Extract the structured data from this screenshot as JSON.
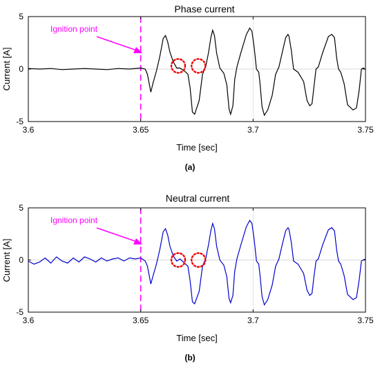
{
  "chart_data": [
    {
      "type": "line",
      "panel_label": "(a)",
      "title": "Phase current",
      "xlabel": "Time [sec]",
      "ylabel": "Current [A]",
      "xlim": [
        3.6,
        3.75
      ],
      "ylim": [
        -5,
        5
      ],
      "xticks": [
        "3.6",
        "3.65",
        "3.7",
        "3.75"
      ],
      "xtick_values": [
        3.6,
        3.65,
        3.7,
        3.75
      ],
      "yticks": [
        "5",
        "0",
        "-5"
      ],
      "ytick_values": [
        5,
        0,
        -5
      ],
      "grid": false,
      "line_color": "#000000",
      "annotation": {
        "text": "Ignition point",
        "x": 3.65,
        "color": "#ff00ff"
      },
      "highlight_circles": [
        {
          "x": 3.6667,
          "y": 0.3
        },
        {
          "x": 3.6757,
          "y": 0.3
        }
      ],
      "series": [
        {
          "x": [
            3.6,
            3.605,
            3.61,
            3.615,
            3.62,
            3.625,
            3.63,
            3.635,
            3.64,
            3.645,
            3.65,
            3.652,
            3.653,
            3.6545,
            3.6555,
            3.657,
            3.6585,
            3.66,
            3.661,
            3.662,
            3.663,
            3.6645,
            3.666,
            3.6675,
            3.6695,
            3.671,
            3.672,
            3.673,
            3.674,
            3.676,
            3.6775,
            3.679,
            3.6802,
            3.6812,
            3.682,
            3.6828,
            3.6838,
            3.6852,
            3.687,
            3.6883,
            3.6893,
            3.69,
            3.691,
            3.6918,
            3.6928,
            3.6945,
            3.697,
            3.6985,
            3.6995,
            3.7005,
            3.7015,
            3.7025,
            3.703,
            3.704,
            3.705,
            3.7065,
            3.7085,
            3.71,
            3.7115,
            3.713,
            3.7145,
            3.7155,
            3.716,
            3.717,
            3.718,
            3.72,
            3.7225,
            3.724,
            3.7252,
            3.7262,
            3.727,
            3.728,
            3.729,
            3.731,
            3.7335,
            3.735,
            3.7362,
            3.7372,
            3.738,
            3.739,
            3.7405,
            3.742,
            3.7445,
            3.746,
            3.7472,
            3.7482,
            3.749,
            3.75
          ],
          "y": [
            0.05,
            0.0,
            0.05,
            -0.05,
            0.0,
            0.05,
            0.0,
            -0.05,
            0.05,
            0.0,
            0.1,
            0.0,
            -0.5,
            -2.2,
            -1.3,
            -0.2,
            1.2,
            2.9,
            3.2,
            2.6,
            1.6,
            0.7,
            0.1,
            0.1,
            -0.2,
            -0.5,
            -1.8,
            -4.1,
            -4.3,
            -3.0,
            -0.5,
            0.3,
            1.6,
            3.0,
            3.7,
            3.2,
            1.5,
            0.1,
            -0.4,
            -1.5,
            -3.8,
            -4.3,
            -3.5,
            -1.0,
            0.2,
            1.5,
            3.3,
            3.9,
            3.6,
            2.0,
            0.0,
            -0.3,
            -1.2,
            -3.6,
            -4.4,
            -3.9,
            -2.5,
            -0.5,
            0.2,
            1.6,
            3.0,
            3.3,
            3.1,
            1.8,
            0.0,
            -0.3,
            -1.2,
            -3.0,
            -3.5,
            -3.3,
            -1.8,
            0.0,
            0.2,
            1.6,
            3.1,
            3.3,
            3.0,
            1.0,
            0.0,
            -0.3,
            -1.4,
            -3.4,
            -3.9,
            -3.7,
            -2.0,
            0.0,
            0.1,
            0.0
          ]
        }
      ]
    },
    {
      "type": "line",
      "panel_label": "(b)",
      "title": "Neutral current",
      "xlabel": "Time [sec]",
      "ylabel": "Current [A]",
      "xlim": [
        3.6,
        3.75
      ],
      "ylim": [
        -5,
        5
      ],
      "xticks": [
        "3.6",
        "3.65",
        "3.7",
        "3.75"
      ],
      "xtick_values": [
        3.6,
        3.65,
        3.7,
        3.75
      ],
      "yticks": [
        "5",
        "0",
        "-5"
      ],
      "ytick_values": [
        5,
        0,
        -5
      ],
      "grid": false,
      "line_color": "#0000cc",
      "annotation": {
        "text": "Ignition point",
        "x": 3.65,
        "color": "#ff00ff"
      },
      "highlight_circles": [
        {
          "x": 3.6667,
          "y": 0.0
        },
        {
          "x": 3.6757,
          "y": 0.0
        }
      ],
      "series": [
        {
          "x": [
            3.6,
            3.6025,
            3.605,
            3.6075,
            3.61,
            3.6125,
            3.615,
            3.6175,
            3.62,
            3.6225,
            3.625,
            3.6275,
            3.63,
            3.6325,
            3.635,
            3.6375,
            3.64,
            3.6425,
            3.645,
            3.6475,
            3.65,
            3.652,
            3.653,
            3.6545,
            3.6555,
            3.657,
            3.6585,
            3.66,
            3.661,
            3.662,
            3.663,
            3.6645,
            3.666,
            3.6675,
            3.6695,
            3.671,
            3.672,
            3.673,
            3.674,
            3.676,
            3.6775,
            3.679,
            3.6802,
            3.6812,
            3.682,
            3.6828,
            3.6838,
            3.6852,
            3.687,
            3.6883,
            3.6893,
            3.69,
            3.691,
            3.6918,
            3.6928,
            3.6945,
            3.697,
            3.6985,
            3.6995,
            3.7005,
            3.7015,
            3.7025,
            3.703,
            3.704,
            3.705,
            3.7065,
            3.7085,
            3.71,
            3.7115,
            3.713,
            3.7145,
            3.7155,
            3.716,
            3.717,
            3.718,
            3.72,
            3.7225,
            3.724,
            3.7252,
            3.7262,
            3.727,
            3.728,
            3.729,
            3.731,
            3.7335,
            3.735,
            3.7362,
            3.7372,
            3.738,
            3.739,
            3.7405,
            3.742,
            3.7445,
            3.746,
            3.7472,
            3.7482,
            3.749,
            3.75
          ],
          "y": [
            -0.1,
            -0.4,
            -0.2,
            0.2,
            -0.3,
            0.3,
            -0.1,
            -0.3,
            0.2,
            -0.2,
            0.3,
            0.1,
            -0.2,
            0.2,
            -0.1,
            0.1,
            0.2,
            -0.1,
            0.2,
            0.1,
            0.2,
            -0.1,
            -0.6,
            -2.3,
            -1.5,
            -0.4,
            1.0,
            2.7,
            3.0,
            2.4,
            1.3,
            0.4,
            -0.1,
            0.1,
            -0.3,
            -0.6,
            -2.0,
            -4.0,
            -4.2,
            -3.0,
            -0.6,
            0.2,
            1.5,
            2.8,
            3.5,
            3.0,
            1.3,
            0.0,
            -0.5,
            -1.6,
            -3.7,
            -4.1,
            -3.4,
            -1.1,
            0.1,
            1.4,
            3.2,
            3.8,
            3.5,
            1.9,
            -0.1,
            -0.4,
            -1.3,
            -3.5,
            -4.3,
            -3.8,
            -2.4,
            -0.6,
            0.1,
            1.5,
            2.8,
            3.1,
            2.9,
            1.7,
            -0.1,
            -0.4,
            -1.3,
            -2.9,
            -3.4,
            -3.2,
            -1.7,
            -0.1,
            0.1,
            1.5,
            2.9,
            3.1,
            2.8,
            0.9,
            -0.1,
            -0.4,
            -1.5,
            -3.3,
            -3.8,
            -3.6,
            -1.9,
            -0.1,
            0.0,
            0.1
          ]
        }
      ]
    }
  ]
}
